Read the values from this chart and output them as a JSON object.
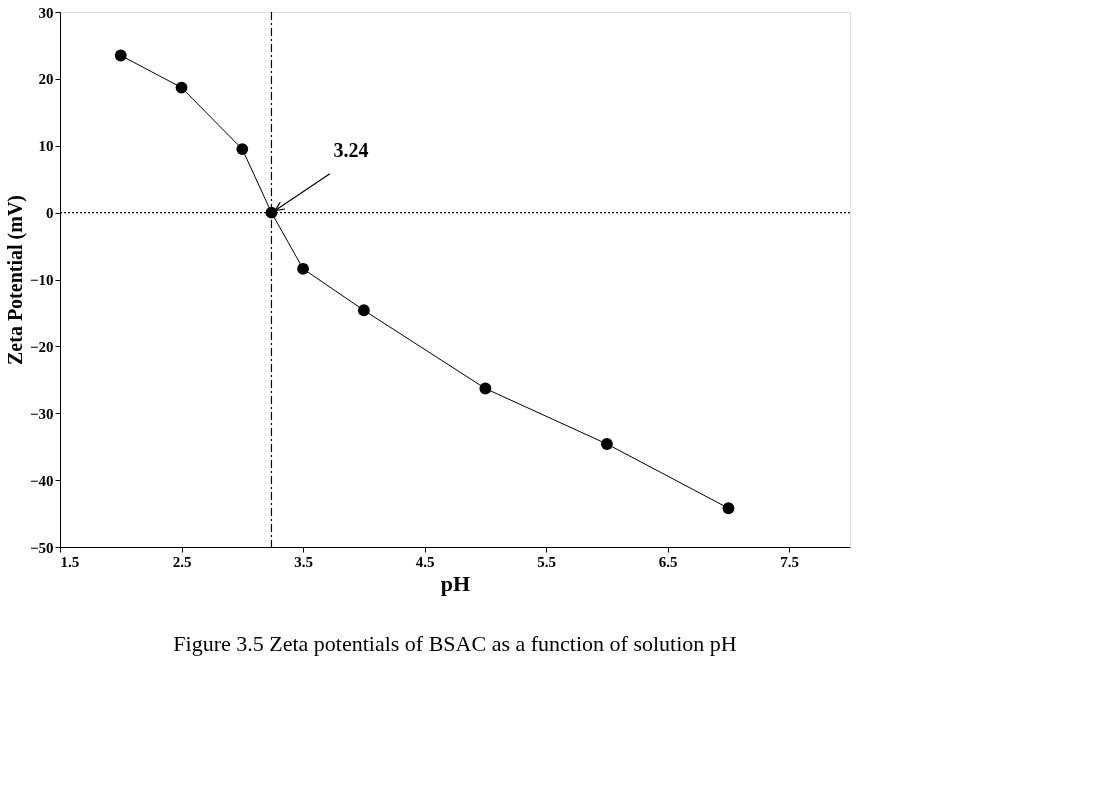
{
  "chart_data": {
    "type": "line",
    "xlabel": "pH",
    "ylabel": "Zeta Potential (mV)",
    "x": [
      2,
      2.5,
      3,
      3.24,
      3.5,
      4,
      5,
      6,
      7
    ],
    "series": [
      {
        "color": "#000000",
        "values": [
          23.5,
          18.7,
          9.5,
          0,
          -8.4,
          -14.6,
          -26.3,
          -34.6,
          -44.2
        ]
      }
    ],
    "xlim": [
      1.5,
      8.0
    ],
    "xticks": [
      1.5,
      2.5,
      3.5,
      4.5,
      5.5,
      6.5,
      7.5
    ],
    "ylim": [
      -50,
      30
    ],
    "yticks": [
      -50,
      -40,
      -30,
      -20,
      -10,
      0,
      10,
      20,
      30
    ],
    "grid": false,
    "marker": "circle",
    "line_style": "solid",
    "ref_lines": [
      {
        "axis": "x",
        "value": 3.24,
        "line_style": "dashed",
        "color": "#000000"
      },
      {
        "axis": "y",
        "value": 0,
        "line_style": "dotted",
        "color": "#000000"
      }
    ],
    "annotations": [
      {
        "text": "3.24",
        "x": 3.24,
        "y": 0
      },
      "Figure 3.5    Zeta potentials of BSAC as a function of solution pH"
    ]
  }
}
